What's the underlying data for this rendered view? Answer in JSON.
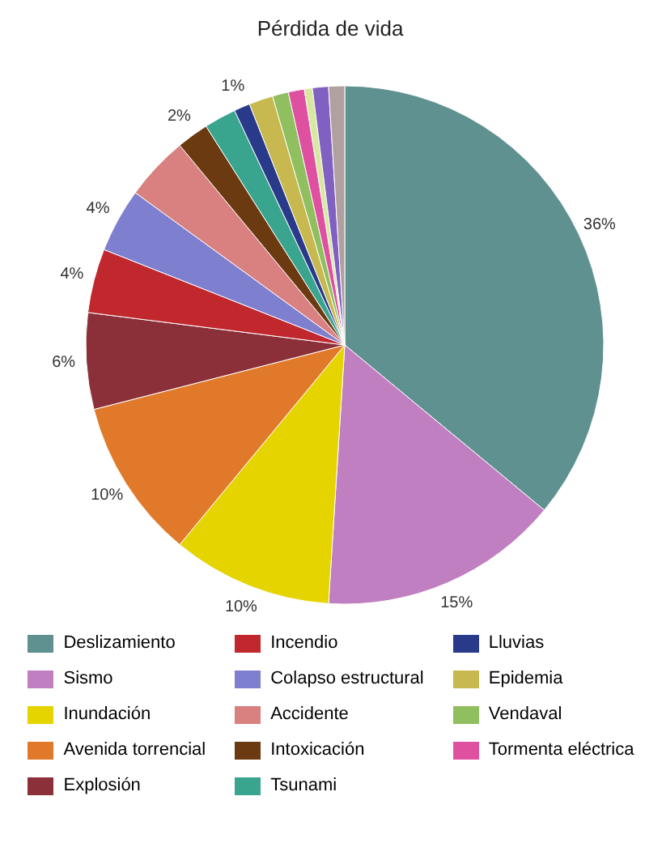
{
  "chart_data": {
    "type": "pie",
    "title": "Pérdida de vida",
    "categories": [
      "Deslizamiento",
      "Sismo",
      "Inundación",
      "Avenida torrencial",
      "Explosión",
      "Incendio",
      "Colapso estructural",
      "Accidente",
      "Intoxicación",
      "Tsunami",
      "Lluvias",
      "Epidemia",
      "Vendaval",
      "Tormenta eléctrica",
      null,
      null,
      null
    ],
    "values": [
      36,
      15,
      10,
      10,
      6,
      4,
      4,
      4,
      2,
      2,
      1,
      1.5,
      1,
      1,
      0.5,
      1,
      1
    ],
    "value_labels": [
      "36%",
      "15%",
      "10%",
      "10%",
      "6%",
      "4%",
      "4%",
      null,
      "2%",
      null,
      "1%",
      null,
      null,
      null,
      null,
      null,
      null
    ],
    "colors": [
      "#5f9190",
      "#c07fc0",
      "#e5d400",
      "#e07a2a",
      "#8b3038",
      "#c0282e",
      "#7f7fcf",
      "#d98080",
      "#6b3a10",
      "#3aa58f",
      "#2a3a8a",
      "#c8b850",
      "#8fbf5f",
      "#e050a0",
      "#d8e8a0",
      "#8060c0",
      "#b0a0a0"
    ],
    "legend": "bottom"
  }
}
